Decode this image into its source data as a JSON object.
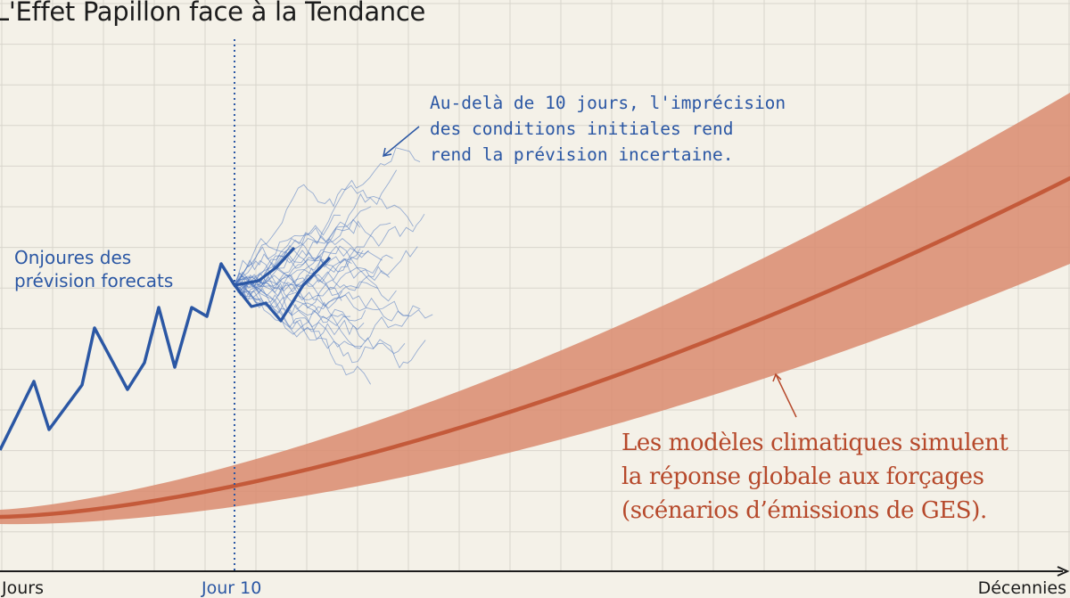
{
  "chart_data": {
    "type": "line",
    "title": "L'Effet Papillon face à la Tendance",
    "x_tick_labels": [
      "Jours",
      "Jour 10",
      "Décennies"
    ],
    "grid": true,
    "legend": "none",
    "series": [
      {
        "kind": "weather_forecast",
        "color": "#2b57a4"
      },
      {
        "kind": "ensemble_spread",
        "color": "#4a74c0",
        "count": 30
      },
      {
        "kind": "climate_trend",
        "color": "#c45a3a",
        "band_color": "#d98b6f"
      }
    ],
    "markers": [
      {
        "label": "Jour 10",
        "style": "dotted-vertical"
      }
    ],
    "annotations": {
      "forecast": [
        "Onjoures des",
        "prévision forecats"
      ],
      "chaos": [
        "Au-delà de 10 jours, l'imprécision",
        "des conditions initiales rend",
        "rend la prévision incertaine."
      ],
      "climate": [
        "Les modèles climatiques simulent",
        "la réponse globale aux forçages",
        "(scénarios d’émissions de GES)."
      ]
    }
  },
  "colors": {
    "background": "#f4f1e8",
    "grid": "#d8d5cc",
    "weather": "#2b57a4",
    "climate": "#c45a3a"
  }
}
